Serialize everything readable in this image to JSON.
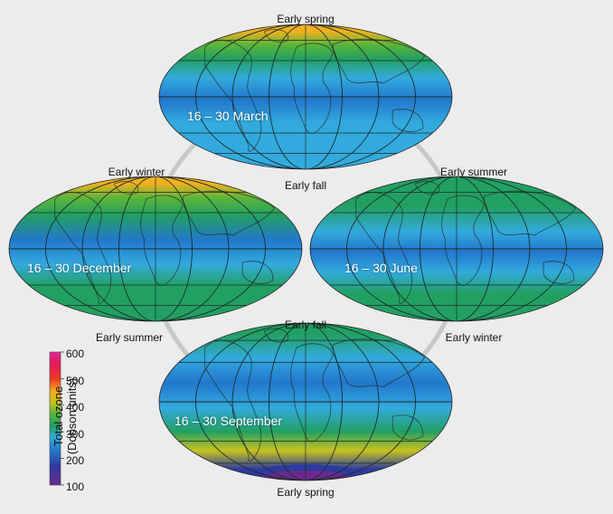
{
  "maps": [
    {
      "id": "march",
      "period": "16 – 30 March",
      "top_label": "Early spring",
      "bottom_label": "Early fall",
      "ozone_field": "march"
    },
    {
      "id": "december",
      "period": "16 – 30 December",
      "top_label": "Early winter",
      "bottom_label": "Early summer",
      "ozone_field": "december"
    },
    {
      "id": "june",
      "period": "16 – 30 June",
      "top_label": "Early summer",
      "bottom_label": "Early winter",
      "ozone_field": "june"
    },
    {
      "id": "september",
      "period": "16 – 30 September",
      "top_label": "Early fall",
      "bottom_label": "Early spring",
      "ozone_field": "september"
    }
  ],
  "colorbar": {
    "title_line1": "Total ozone",
    "title_line2": "(Dobson units)",
    "ticks": [
      "600",
      "500",
      "400",
      "300",
      "200",
      "100"
    ],
    "min": 100,
    "max": 600,
    "colors": [
      {
        "value": 100,
        "color": "#6a2a8c"
      },
      {
        "value": 170,
        "color": "#2d3aa0"
      },
      {
        "value": 230,
        "color": "#2277cc"
      },
      {
        "value": 280,
        "color": "#33aadd"
      },
      {
        "value": 320,
        "color": "#22a062"
      },
      {
        "value": 370,
        "color": "#5ab53a"
      },
      {
        "value": 410,
        "color": "#c8c21e"
      },
      {
        "value": 450,
        "color": "#f0b020"
      },
      {
        "value": 500,
        "color": "#ee3a22"
      },
      {
        "value": 560,
        "color": "#e5185a"
      },
      {
        "value": 600,
        "color": "#dd2a9a"
      }
    ]
  },
  "colors": {
    "background": "#ececec",
    "grid_line": "#1a2a2a",
    "connector_ring": "#c8c8c8"
  }
}
